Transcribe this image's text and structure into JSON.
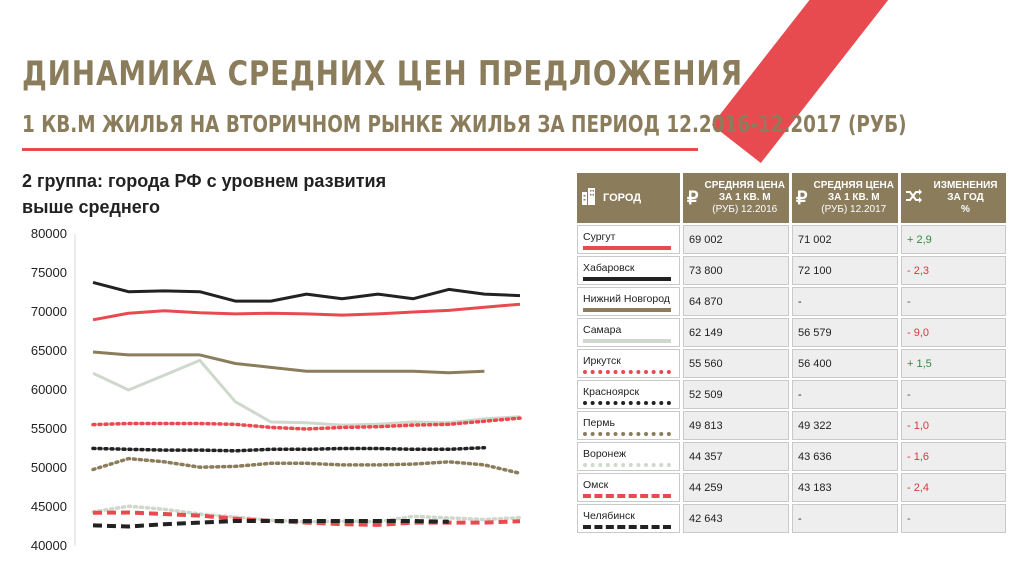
{
  "header": {
    "title": "ДИНАМИКА СРЕДНИХ ЦЕН ПРЕДЛОЖЕНИЯ",
    "subtitle": "1 КВ.М ЖИЛЬЯ НА ВТОРИЧНОМ РЫНКЕ ЖИЛЬЯ ЗА ПЕРИОД 12.2016-12.2017 (РУБ)"
  },
  "group_label": {
    "line1": "2 группа: города РФ с уровнем развития",
    "line2": "выше среднего"
  },
  "colors": {
    "accent_red": "#e84b4f",
    "brand_tan": "#8b7d5c",
    "positive": "#2e8b3d",
    "negative": "#d33a3e"
  },
  "table": {
    "headers": {
      "city": "ГОРОД",
      "city_icon": "buildings-icon",
      "price_2016_line1": "СРЕДНЯЯ ЦЕНА",
      "price_2016_line2": "ЗА 1 КВ. М",
      "price_2016_line3": "(РУБ) 12.2016",
      "price_2017_line1": "СРЕДНЯЯ ЦЕНА",
      "price_2017_line2": "ЗА 1 КВ. М",
      "price_2017_line3": "(РУБ) 12.2017",
      "change_line1": "ИЗМЕНЕНИЯ",
      "change_line2": "ЗА ГОД",
      "change_line3": "%",
      "ruble_icon": "ruble-icon",
      "shuffle_icon": "shuffle-icon"
    },
    "rows": [
      {
        "city": "Сургут",
        "price_2016": "69 002",
        "price_2017": "71 002",
        "change": "+ 2,9",
        "trend": "pos",
        "color": "#e84b4f",
        "style": "solid"
      },
      {
        "city": "Хабаровск",
        "price_2016": "73 800",
        "price_2017": "72 100",
        "change": "- 2,3",
        "trend": "neg",
        "color": "#222222",
        "style": "solid"
      },
      {
        "city": "Нижний Новгород",
        "price_2016": "64 870",
        "price_2017": "-",
        "change": "-",
        "trend": "neu",
        "color": "#8b7d5c",
        "style": "solid"
      },
      {
        "city": "Самара",
        "price_2016": "62 149",
        "price_2017": "56 579",
        "change": "- 9,0",
        "trend": "neg",
        "color": "#cfd8cc",
        "style": "solid"
      },
      {
        "city": "Иркутск",
        "price_2016": "55 560",
        "price_2017": "56 400",
        "change": "+ 1,5",
        "trend": "pos",
        "color": "#e84b4f",
        "style": "dotted"
      },
      {
        "city": "Красноярск",
        "price_2016": "52 509",
        "price_2017": "-",
        "change": "-",
        "trend": "neu",
        "color": "#222222",
        "style": "dotted"
      },
      {
        "city": "Пермь",
        "price_2016": "49 813",
        "price_2017": "49 322",
        "change": "- 1,0",
        "trend": "neg",
        "color": "#8b7d5c",
        "style": "dotted"
      },
      {
        "city": "Воронеж",
        "price_2016": "44 357",
        "price_2017": "43 636",
        "change": "- 1,6",
        "trend": "neg",
        "color": "#cfd8cc",
        "style": "dotted"
      },
      {
        "city": "Омск",
        "price_2016": "44 259",
        "price_2017": "43 183",
        "change": "- 2,4",
        "trend": "neg",
        "color": "#e84b4f",
        "style": "dashed"
      },
      {
        "city": "Челябинск",
        "price_2016": "42 643",
        "price_2017": "-",
        "change": "-",
        "trend": "neu",
        "color": "#222222",
        "style": "dashed"
      }
    ]
  },
  "chart_data": {
    "type": "line",
    "ylim": [
      40000,
      80000
    ],
    "yticks": [
      "80000",
      "75000",
      "70000",
      "65000",
      "60000",
      "55000",
      "50000",
      "45000",
      "40000"
    ],
    "grid": false,
    "series": [
      {
        "name": "Сургут",
        "color": "#e84b4f",
        "style": "solid",
        "values": [
          69002,
          69850,
          70150,
          69900,
          69750,
          69850,
          69750,
          69600,
          69750,
          70000,
          70200,
          70600,
          71002
        ]
      },
      {
        "name": "Хабаровск",
        "color": "#222222",
        "style": "solid",
        "values": [
          73800,
          72600,
          72700,
          72600,
          71400,
          71400,
          72300,
          71700,
          72300,
          71700,
          72900,
          72300,
          72100
        ]
      },
      {
        "name": "Нижний Новгород",
        "color": "#8b7d5c",
        "style": "solid",
        "values": [
          64870,
          64500,
          64500,
          64500,
          63400,
          62900,
          62400,
          62400,
          62400,
          62400,
          62200,
          62400,
          null
        ]
      },
      {
        "name": "Самара",
        "color": "#cfd8cc",
        "style": "solid",
        "values": [
          62149,
          60000,
          61900,
          63800,
          58500,
          55900,
          55800,
          55500,
          55600,
          55900,
          55800,
          56300,
          56579
        ]
      },
      {
        "name": "Иркутск",
        "color": "#e84b4f",
        "style": "dotted",
        "values": [
          55560,
          55700,
          55700,
          55700,
          55600,
          55200,
          55000,
          55200,
          55300,
          55500,
          55600,
          56000,
          56400
        ]
      },
      {
        "name": "Красноярск",
        "color": "#222222",
        "style": "dotted",
        "values": [
          52509,
          52400,
          52300,
          52300,
          52200,
          52400,
          52400,
          52500,
          52500,
          52400,
          52400,
          52600,
          null
        ]
      },
      {
        "name": "Пермь",
        "color": "#8b7d5c",
        "style": "dotted",
        "values": [
          49813,
          51200,
          50800,
          50100,
          50200,
          50600,
          50600,
          50400,
          50400,
          50500,
          50800,
          50400,
          49322
        ]
      },
      {
        "name": "Воронеж",
        "color": "#cfd8cc",
        "style": "dotted",
        "values": [
          44357,
          45100,
          44700,
          44100,
          43700,
          43300,
          43100,
          43200,
          43100,
          43800,
          43600,
          43400,
          43636
        ]
      },
      {
        "name": "Омск",
        "color": "#e84b4f",
        "style": "dashed",
        "values": [
          44259,
          44300,
          44100,
          43900,
          43500,
          43200,
          43000,
          42800,
          42700,
          43000,
          43000,
          43000,
          43183
        ]
      },
      {
        "name": "Челябинск",
        "color": "#222222",
        "style": "dashed",
        "values": [
          42643,
          42500,
          42800,
          43000,
          43200,
          43200,
          43200,
          43200,
          43200,
          43200,
          43100,
          null,
          null
        ]
      }
    ]
  }
}
